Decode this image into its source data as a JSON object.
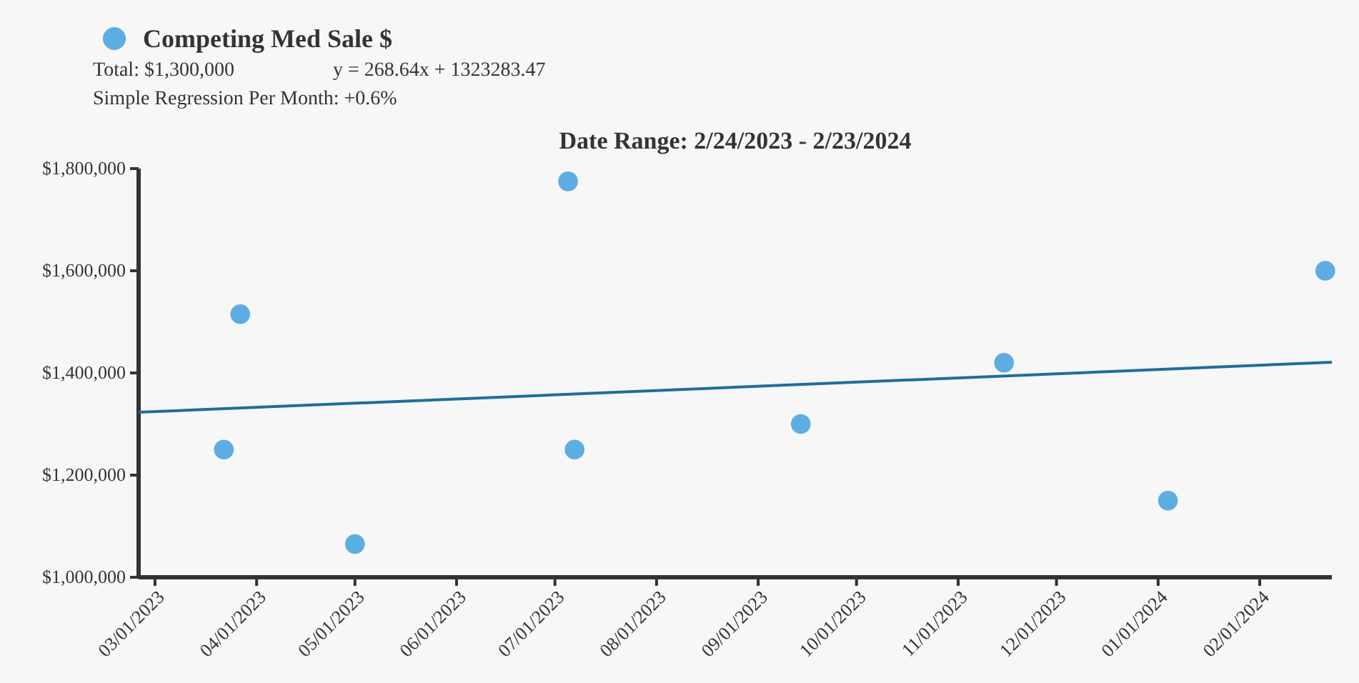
{
  "chart_data": {
    "type": "scatter",
    "title": "Date Range: 2/24/2023 - 2/23/2024",
    "annotations": [
      "Total: $1,300,000",
      "y = 268.64x + 1323283.47",
      "Simple Regression Per Month: +0.6%"
    ],
    "series": [
      {
        "name": "Competing Med Sale $",
        "marker": "circle",
        "color": "#5dade2",
        "x": [
          "2023-03-22",
          "2023-03-27",
          "2023-05-01",
          "2023-07-05",
          "2023-07-07",
          "2023-09-14",
          "2023-11-15",
          "2024-01-04",
          "2024-02-21"
        ],
        "values": [
          1250000,
          1515000,
          1065000,
          1775000,
          1250000,
          1300000,
          1420000,
          1150000,
          1600000
        ]
      },
      {
        "type": "line",
        "color": "#1f6f99",
        "x": [
          "2023-02-24",
          "2024-02-23"
        ],
        "values": [
          1323000,
          1421000
        ]
      }
    ],
    "xlim": [
      "2023-02-24",
      "2024-02-23"
    ],
    "xticks": [
      {
        "value": "2023-03-01",
        "label": "03/01/2023"
      },
      {
        "value": "2023-04-01",
        "label": "04/01/2023"
      },
      {
        "value": "2023-05-01",
        "label": "05/01/2023"
      },
      {
        "value": "2023-06-01",
        "label": "06/01/2023"
      },
      {
        "value": "2023-07-01",
        "label": "07/01/2023"
      },
      {
        "value": "2023-08-01",
        "label": "08/01/2023"
      },
      {
        "value": "2023-09-01",
        "label": "09/01/2023"
      },
      {
        "value": "2023-10-01",
        "label": "10/01/2023"
      },
      {
        "value": "2023-11-01",
        "label": "11/01/2023"
      },
      {
        "value": "2023-12-01",
        "label": "12/01/2023"
      },
      {
        "value": "2024-01-01",
        "label": "01/01/2024"
      },
      {
        "value": "2024-02-01",
        "label": "02/01/2024"
      }
    ],
    "ylim": [
      1000000,
      1800000
    ],
    "yticks": [
      {
        "value": 1000000,
        "label": "$1,000,000"
      },
      {
        "value": 1200000,
        "label": "$1,200,000"
      },
      {
        "value": 1400000,
        "label": "$1,400,000"
      },
      {
        "value": 1600000,
        "label": "$1,600,000"
      },
      {
        "value": 1800000,
        "label": "$1,800,000"
      }
    ],
    "legend": "top left",
    "grid": false
  }
}
